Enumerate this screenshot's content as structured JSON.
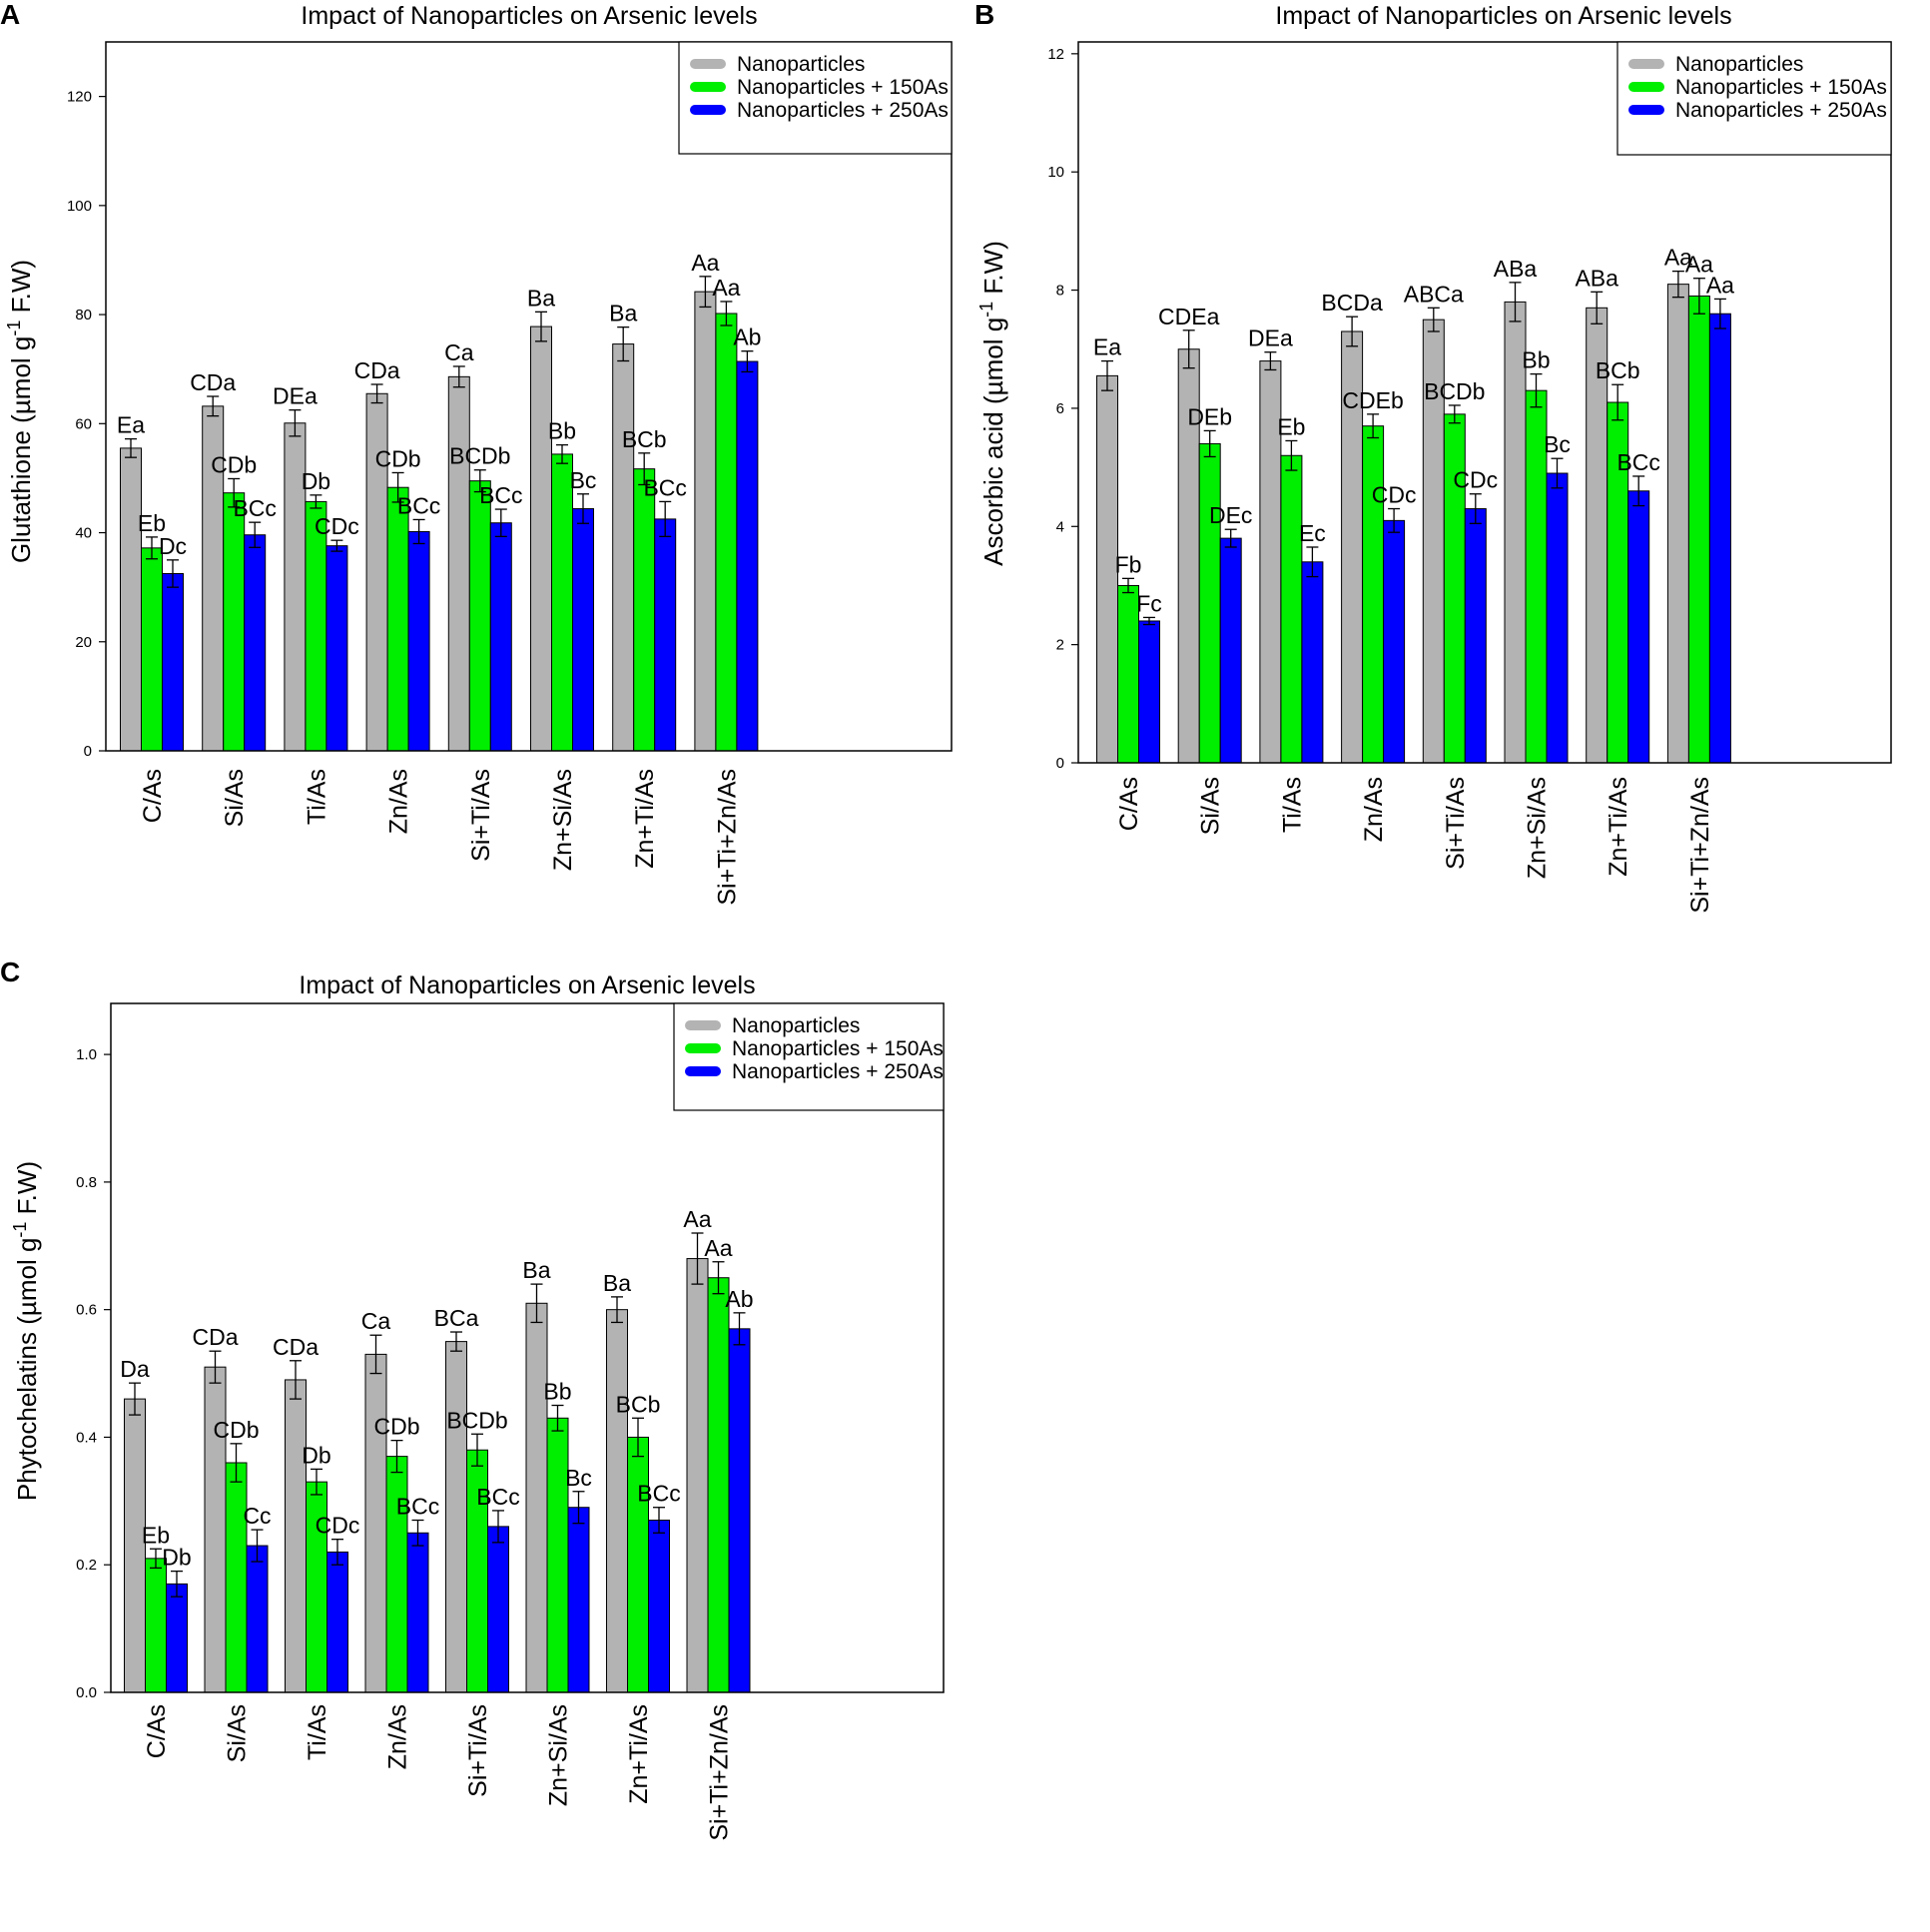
{
  "colors": {
    "s0": "#b3b3b3",
    "s1": "#00ee00",
    "s2": "#0000ff"
  },
  "chart_data": [
    {
      "panel": "A",
      "type": "bar",
      "title": "Impact of Nanoparticles on Arsenic levels",
      "ylabel_main": "Glutathione (µmol g",
      "ylabel_sup": "-1",
      "ylabel_tail": " F.W)",
      "xlabel": "",
      "ylim": [
        0,
        130
      ],
      "yticks": [
        0,
        20,
        40,
        60,
        80,
        100,
        120
      ],
      "legend_position": "top-right",
      "categories": [
        "C/As",
        "Si/As",
        "Ti/As",
        "Zn/As",
        "Si+Ti/As",
        "Zn+Si/As",
        "Zn+Ti/As",
        "Si+Ti+Zn/As"
      ],
      "series": [
        {
          "name": "Nanoparticles",
          "values": [
            55.5,
            63.2,
            60.1,
            65.5,
            68.6,
            77.8,
            74.6,
            84.2
          ],
          "errors": [
            1.7,
            1.8,
            2.4,
            1.7,
            1.9,
            2.7,
            3.1,
            2.8
          ],
          "labels": [
            "Ea",
            "CDa",
            "DEa",
            "CDa",
            "Ca",
            "Ba",
            "Ba",
            "Aa"
          ]
        },
        {
          "name": "Nanoparticles + 150As",
          "values": [
            37.2,
            47.3,
            45.7,
            48.3,
            49.5,
            54.4,
            51.7,
            80.2
          ],
          "errors": [
            2.0,
            2.6,
            1.2,
            2.7,
            2.0,
            1.7,
            2.9,
            2.2
          ],
          "labels": [
            "Eb",
            "CDb",
            "Db",
            "CDb",
            "BCDb",
            "Bb",
            "BCb",
            "Aa"
          ]
        },
        {
          "name": "Nanoparticles + 250As",
          "values": [
            32.5,
            39.6,
            37.6,
            40.2,
            41.8,
            44.4,
            42.5,
            71.4
          ],
          "errors": [
            2.5,
            2.3,
            1.0,
            2.2,
            2.5,
            2.7,
            3.2,
            1.9
          ],
          "labels": [
            "Dc",
            "BCc",
            "CDc",
            "BCc",
            "BCc",
            "Bc",
            "BCc",
            "Ab"
          ]
        }
      ]
    },
    {
      "panel": "B",
      "type": "bar",
      "title": "Impact of Nanoparticles on Arsenic levels",
      "ylabel_main": "Ascorbic acid (µmol g",
      "ylabel_sup": "-1",
      "ylabel_tail": " F.W)",
      "xlabel": "",
      "ylim": [
        0,
        12.2
      ],
      "yticks": [
        0,
        2,
        4,
        6,
        8,
        10,
        12
      ],
      "legend_position": "top-right",
      "categories": [
        "C/As",
        "Si/As",
        "Ti/As",
        "Zn/As",
        "Si+Ti/As",
        "Zn+Si/As",
        "Zn+Ti/As",
        "Si+Ti+Zn/As"
      ],
      "series": [
        {
          "name": "Nanoparticles",
          "values": [
            6.55,
            7.0,
            6.8,
            7.3,
            7.5,
            7.8,
            7.7,
            8.1
          ],
          "errors": [
            0.25,
            0.32,
            0.15,
            0.25,
            0.2,
            0.33,
            0.27,
            0.22
          ],
          "labels": [
            "Ea",
            "CDEa",
            "DEa",
            "BCDa",
            "ABCa",
            "ABa",
            "ABa",
            "Aa"
          ]
        },
        {
          "name": "Nanoparticles + 150As",
          "values": [
            3.0,
            5.4,
            5.2,
            5.7,
            5.9,
            6.3,
            6.1,
            7.9
          ],
          "errors": [
            0.12,
            0.22,
            0.25,
            0.2,
            0.15,
            0.28,
            0.3,
            0.3
          ],
          "labels": [
            "Fb",
            "DEb",
            "Eb",
            "CDEb",
            "BCDb",
            "Bb",
            "BCb",
            "Aa"
          ]
        },
        {
          "name": "Nanoparticles + 250As",
          "values": [
            2.4,
            3.8,
            3.4,
            4.1,
            4.3,
            4.9,
            4.6,
            7.6
          ],
          "errors": [
            0.06,
            0.15,
            0.25,
            0.2,
            0.25,
            0.25,
            0.25,
            0.25
          ],
          "labels": [
            "Fc",
            "DEc",
            "Ec",
            "CDc",
            "CDc",
            "Bc",
            "BCc",
            "Aa"
          ]
        }
      ]
    },
    {
      "panel": "C",
      "type": "bar",
      "title": "Impact of Nanoparticles on Arsenic levels",
      "ylabel_main": "Phytochelatins (µmol g",
      "ylabel_sup": "-1",
      "ylabel_tail": " F.W)",
      "xlabel": "",
      "ylim": [
        0,
        1.08
      ],
      "yticks": [
        0.0,
        0.2,
        0.4,
        0.6,
        0.8,
        1.0
      ],
      "legend_position": "top-right",
      "categories": [
        "C/As",
        "Si/As",
        "Ti/As",
        "Zn/As",
        "Si+Ti/As",
        "Zn+Si/As",
        "Zn+Ti/As",
        "Si+Ti+Zn/As"
      ],
      "series": [
        {
          "name": "Nanoparticles",
          "values": [
            0.46,
            0.51,
            0.49,
            0.53,
            0.55,
            0.61,
            0.6,
            0.68
          ],
          "errors": [
            0.025,
            0.025,
            0.03,
            0.03,
            0.015,
            0.03,
            0.02,
            0.04
          ],
          "labels": [
            "Da",
            "CDa",
            "CDa",
            "Ca",
            "BCa",
            "Ba",
            "Ba",
            "Aa"
          ]
        },
        {
          "name": "Nanoparticles + 150As",
          "values": [
            0.21,
            0.36,
            0.33,
            0.37,
            0.38,
            0.43,
            0.4,
            0.65
          ],
          "errors": [
            0.015,
            0.03,
            0.02,
            0.025,
            0.025,
            0.02,
            0.03,
            0.025
          ],
          "labels": [
            "Eb",
            "CDb",
            "Db",
            "CDb",
            "BCDb",
            "Bb",
            "BCb",
            "Aa"
          ]
        },
        {
          "name": "Nanoparticles + 250As",
          "values": [
            0.17,
            0.23,
            0.22,
            0.25,
            0.26,
            0.29,
            0.27,
            0.57
          ],
          "errors": [
            0.02,
            0.025,
            0.02,
            0.02,
            0.025,
            0.025,
            0.02,
            0.025
          ],
          "labels": [
            "Db",
            "Cc",
            "CDc",
            "BCc",
            "BCc",
            "Bc",
            "BCc",
            "Ab"
          ]
        }
      ]
    }
  ]
}
